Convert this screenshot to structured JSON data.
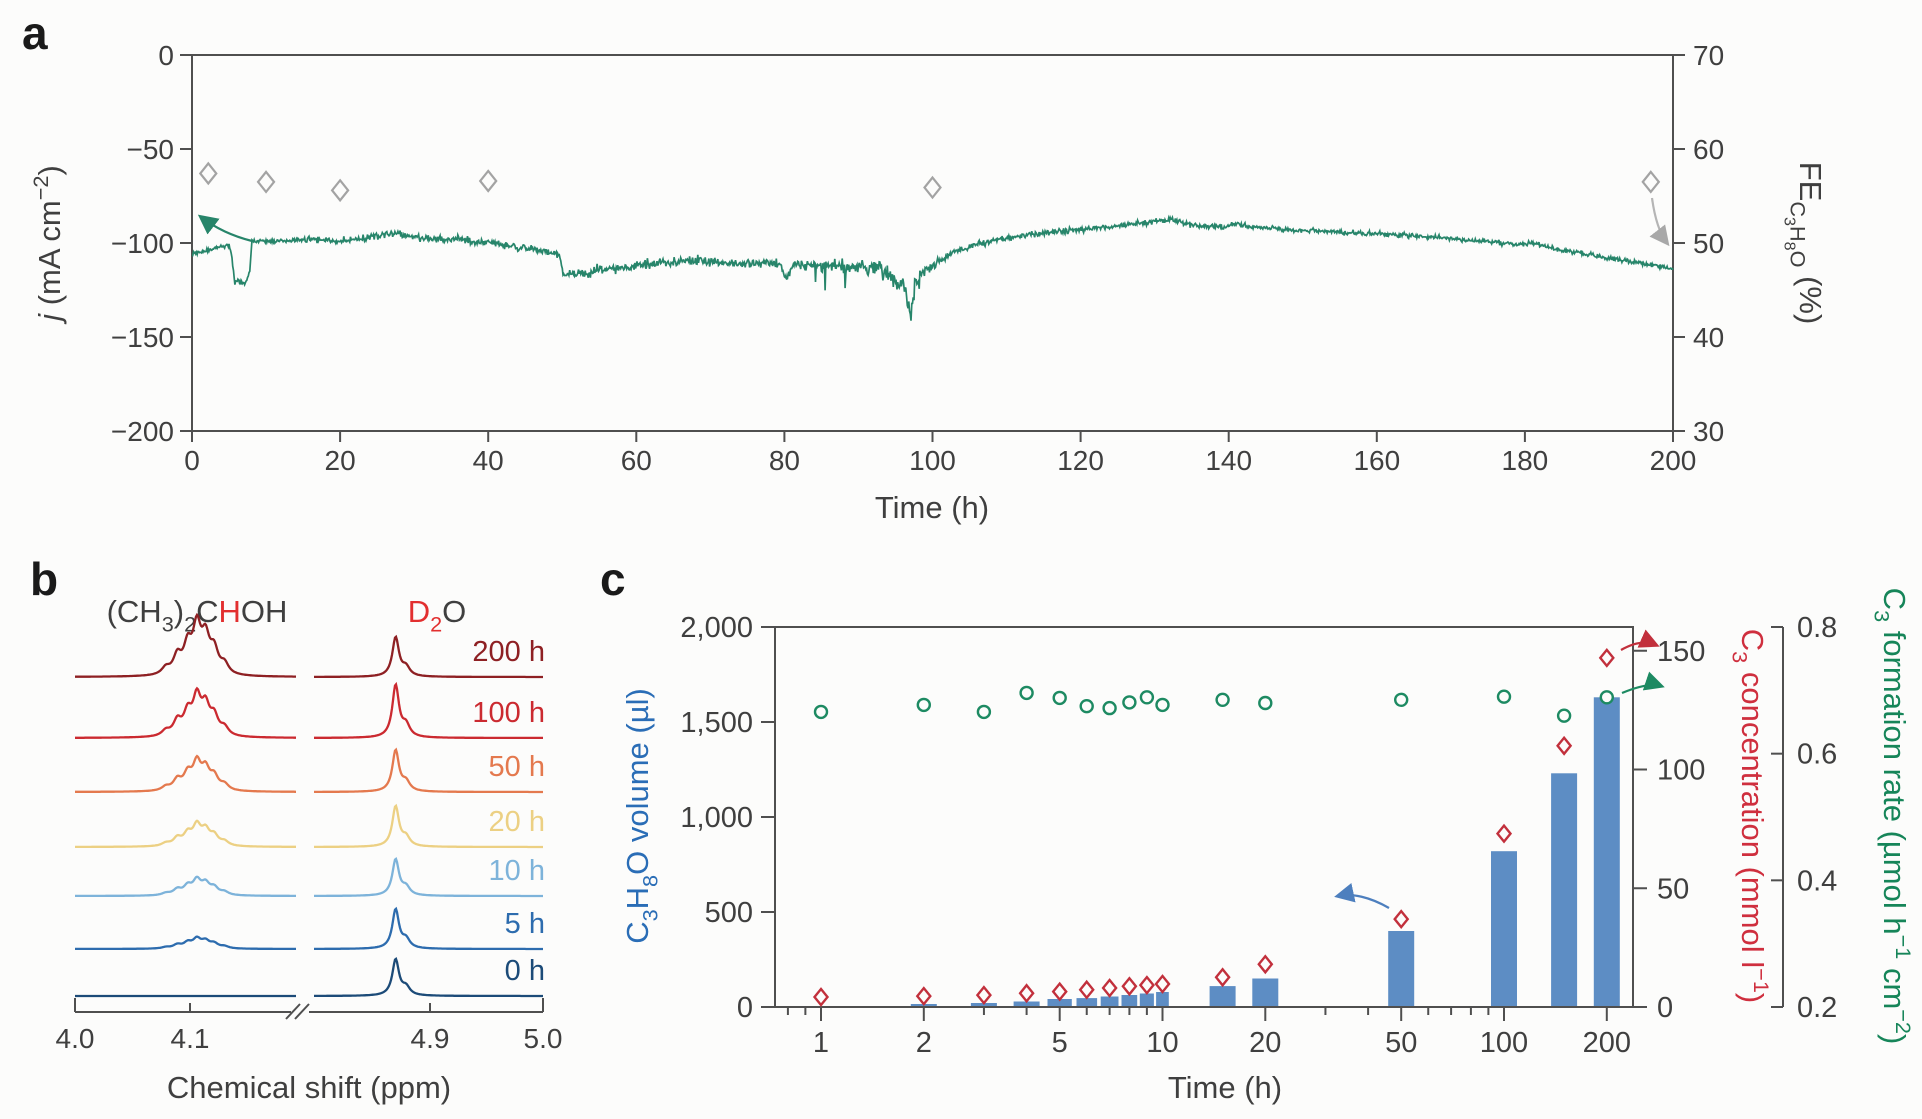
{
  "figure": {
    "background": "#fcfcfb",
    "text_color": "#3f3f3f",
    "axis_color": "#4f4f4f"
  },
  "chart_data": [
    {
      "id": "a",
      "panel_label": "a",
      "type": "line",
      "xlabel": "Time (h)",
      "ylabel_left": "j (mA cm−2)",
      "ylabel_right": "FE_C3H8O (%)",
      "ylabel_left_segments": [
        {
          "t": "j",
          "style": "italic"
        },
        {
          "t": " (mA cm"
        },
        {
          "t": "−2",
          "sup": 1
        },
        {
          "t": ")"
        }
      ],
      "ylabel_right_segments": [
        {
          "t": "FE"
        },
        {
          "t": "C",
          "sub": 1
        },
        {
          "t": "3",
          "sub": 2
        },
        {
          "t": "H",
          "sub": 1
        },
        {
          "t": "8",
          "sub": 2
        },
        {
          "t": "O",
          "sub": 1
        },
        {
          "t": " (%)"
        }
      ],
      "xlim": [
        0,
        200
      ],
      "ylim_left": [
        -200,
        0
      ],
      "ylim_right": [
        30,
        70
      ],
      "x_ticks": [
        {
          "v": 0,
          "label": "0"
        },
        {
          "v": 20,
          "label": "20"
        },
        {
          "v": 40,
          "label": "40"
        },
        {
          "v": 60,
          "label": "60"
        },
        {
          "v": 80,
          "label": "80"
        },
        {
          "v": 100,
          "label": "100"
        },
        {
          "v": 120,
          "label": "120"
        },
        {
          "v": 140,
          "label": "140"
        },
        {
          "v": 160,
          "label": "160"
        },
        {
          "v": 180,
          "label": "180"
        },
        {
          "v": 200,
          "label": "200"
        }
      ],
      "y_left_ticks": [
        {
          "v": 0,
          "label": "0"
        },
        {
          "v": -50,
          "label": "−50"
        },
        {
          "v": -100,
          "label": "−100"
        },
        {
          "v": -150,
          "label": "−150"
        },
        {
          "v": -200,
          "label": "−200"
        }
      ],
      "y_right_ticks": [
        {
          "v": 70,
          "label": "70"
        },
        {
          "v": 60,
          "label": "60"
        },
        {
          "v": 50,
          "label": "50"
        },
        {
          "v": 40,
          "label": "40"
        },
        {
          "v": 30,
          "label": "30"
        }
      ],
      "grid": false,
      "series": [
        {
          "name": "current density j",
          "axis": "left",
          "color": "#27856a",
          "anchors": [
            [
              0,
              -106,
              1.5
            ],
            [
              2,
              -104,
              1.5
            ],
            [
              4,
              -102,
              1.5
            ],
            [
              5,
              -101,
              1.5
            ],
            [
              5.4,
              -108,
              2
            ],
            [
              5.8,
              -122,
              3
            ],
            [
              6.5,
              -120,
              4
            ],
            [
              7.2,
              -122,
              3
            ],
            [
              7.8,
              -115,
              3
            ],
            [
              8.1,
              -99,
              1.5
            ],
            [
              10,
              -99,
              2
            ],
            [
              13,
              -99,
              2
            ],
            [
              16,
              -98,
              2.5
            ],
            [
              20,
              -99,
              2.5
            ],
            [
              24,
              -97,
              3
            ],
            [
              27,
              -95,
              3.5
            ],
            [
              29,
              -96,
              3
            ],
            [
              32,
              -98,
              3
            ],
            [
              36,
              -98,
              3
            ],
            [
              40,
              -100,
              3
            ],
            [
              44,
              -102,
              3
            ],
            [
              47,
              -104,
              2.5
            ],
            [
              49.5,
              -106,
              2.5
            ],
            [
              50.2,
              -117,
              3
            ],
            [
              53,
              -116,
              4
            ],
            [
              56,
              -114,
              4
            ],
            [
              59,
              -113,
              4
            ],
            [
              62,
              -111,
              4
            ],
            [
              65,
              -110,
              4
            ],
            [
              68,
              -109,
              4
            ],
            [
              71,
              -110,
              4
            ],
            [
              74,
              -111,
              4
            ],
            [
              77,
              -110,
              4
            ],
            [
              79.5,
              -112,
              4
            ],
            [
              80.3,
              -120,
              4
            ],
            [
              81,
              -112,
              4
            ],
            [
              84,
              -112,
              5
            ],
            [
              87,
              -113,
              5
            ],
            [
              90,
              -113,
              6
            ],
            [
              92,
              -112,
              6
            ],
            [
              94,
              -117,
              8
            ],
            [
              95.5,
              -121,
              9
            ],
            [
              96.6,
              -128,
              10
            ],
            [
              97.1,
              -138,
              10
            ],
            [
              97.4,
              -128,
              9
            ],
            [
              98,
              -120,
              7
            ],
            [
              99,
              -115,
              5
            ],
            [
              100,
              -112,
              4
            ],
            [
              101.5,
              -108,
              3
            ],
            [
              103,
              -105,
              3
            ],
            [
              105,
              -102,
              2.5
            ],
            [
              108,
              -99,
              2.5
            ],
            [
              111,
              -97,
              2.5
            ],
            [
              114,
              -95,
              2.5
            ],
            [
              118,
              -93.5,
              2.5
            ],
            [
              122,
              -92,
              2.5
            ],
            [
              126,
              -90.5,
              2.5
            ],
            [
              129,
              -89,
              2.5
            ],
            [
              132,
              -87.5,
              2.5
            ],
            [
              134,
              -89.5,
              2
            ],
            [
              136,
              -91,
              2
            ],
            [
              139,
              -91.5,
              2
            ],
            [
              141.5,
              -89.5,
              2.5
            ],
            [
              144,
              -92,
              2
            ],
            [
              148,
              -93,
              2
            ],
            [
              152,
              -93.5,
              2
            ],
            [
              156,
              -94.5,
              2
            ],
            [
              160,
              -95,
              2
            ],
            [
              164,
              -96,
              2
            ],
            [
              168,
              -97,
              2
            ],
            [
              172,
              -98.5,
              2
            ],
            [
              176,
              -99.5,
              2
            ],
            [
              179,
              -101,
              2
            ],
            [
              181.5,
              -100,
              2
            ],
            [
              184,
              -103,
              2
            ],
            [
              187,
              -105,
              2
            ],
            [
              190,
              -107,
              2.2
            ],
            [
              193,
              -109,
              2
            ],
            [
              196,
              -111,
              1.8
            ],
            [
              198,
              -112.5,
              1.5
            ],
            [
              200,
              -114,
              1.5
            ]
          ]
        },
        {
          "name": "FE C3H8O",
          "axis": "right",
          "marker": "diamond",
          "color": "#a3a3a3",
          "points": [
            [
              2.2,
              57.4
            ],
            [
              10,
              56.5
            ],
            [
              20,
              55.6
            ],
            [
              40,
              56.6
            ],
            [
              100,
              55.9
            ],
            [
              197,
              56.5
            ]
          ]
        }
      ]
    },
    {
      "id": "b",
      "panel_label": "b",
      "type": "line",
      "subtype": "NMR spectra, stacked",
      "xlabel": "Chemical shift (ppm)",
      "axis_break": true,
      "x_ticks_left": [
        {
          "ppm": 4.0,
          "label": "4.0"
        },
        {
          "ppm": 4.1,
          "label": "4.1"
        }
      ],
      "x_ticks_right": [
        {
          "ppm": 4.9,
          "label": "4.9"
        },
        {
          "ppm": 5.0,
          "label": "5.0"
        }
      ],
      "annotation_isopropanol": [
        {
          "t": "(CH"
        },
        {
          "t": "3",
          "sub": 1
        },
        {
          "t": ")"
        },
        {
          "t": "2",
          "sub": 1
        },
        {
          "t": "C"
        },
        {
          "t": "H",
          "color": "#e22f2f"
        },
        {
          "t": "OH"
        }
      ],
      "annotation_d2o": [
        {
          "t": "D",
          "color": "#e22f2f"
        },
        {
          "t": "2",
          "sub": 1,
          "color": "#e22f2f"
        },
        {
          "t": "O"
        }
      ],
      "multiplet_peaks_ppm": [
        [
          4.079,
          0.15
        ],
        [
          4.089,
          0.4
        ],
        [
          4.098,
          0.6
        ],
        [
          4.106,
          1.0
        ],
        [
          4.1135,
          0.75
        ],
        [
          4.121,
          0.5
        ],
        [
          4.13,
          0.22
        ]
      ],
      "d2o_peak_ppm": 4.869,
      "traces": [
        {
          "label": "200 h",
          "color": "#8e2023",
          "multiplet_height": 45,
          "d2o_height": 39
        },
        {
          "label": "100 h",
          "color": "#cb2a30",
          "multiplet_height": 36,
          "d2o_height": 52
        },
        {
          "label": "50 h",
          "color": "#e4794e",
          "multiplet_height": 26,
          "d2o_height": 41
        },
        {
          "label": "20 h",
          "color": "#ecd083",
          "multiplet_height": 19,
          "d2o_height": 40
        },
        {
          "label": "10 h",
          "color": "#7db3da",
          "multiplet_height": 14,
          "d2o_height": 36
        },
        {
          "label": "5 h",
          "color": "#2d6cae",
          "multiplet_height": 9,
          "d2o_height": 39
        },
        {
          "label": "0 h",
          "color": "#1c4b78",
          "multiplet_height": 0,
          "d2o_height": 36
        }
      ]
    },
    {
      "id": "c",
      "panel_label": "c",
      "type": "bar",
      "subtype": "bar + two open-marker scatter series, log x axis",
      "xlabel": "Time (h)",
      "x_scale": "log",
      "x_ticks": [
        {
          "v": 1,
          "label": "1"
        },
        {
          "v": 2,
          "label": "2"
        },
        {
          "v": 5,
          "label": "5"
        },
        {
          "v": 10,
          "label": "10"
        },
        {
          "v": 20,
          "label": "20"
        },
        {
          "v": 50,
          "label": "50"
        },
        {
          "v": 100,
          "label": "100"
        },
        {
          "v": 200,
          "label": "200"
        }
      ],
      "x_minor_ticks": [
        0.8,
        0.9,
        3,
        4,
        6,
        7,
        8,
        9,
        30,
        40,
        60,
        70,
        80,
        90
      ],
      "ylabel_left": "C3H8O volume (µl)",
      "ylabel_left_segments": [
        {
          "t": "C"
        },
        {
          "t": "3",
          "sub": 1
        },
        {
          "t": "H"
        },
        {
          "t": "8",
          "sub": 1
        },
        {
          "t": "O volume (µl)"
        }
      ],
      "ylim_left": [
        0,
        2000
      ],
      "y_left_ticks": [
        {
          "v": 2000,
          "label": "2,000"
        },
        {
          "v": 1500,
          "label": "1,500"
        },
        {
          "v": 1000,
          "label": "1,000"
        },
        {
          "v": 500,
          "label": "500"
        },
        {
          "v": 0,
          "label": "0"
        }
      ],
      "ylabel_right1": "C3 concentration (mmol l−1)",
      "ylabel_right1_segments": [
        {
          "t": "C"
        },
        {
          "t": "3",
          "sub": 1
        },
        {
          "t": " concentration (mmol l"
        },
        {
          "t": "−1",
          "sup": 1
        },
        {
          "t": ")"
        }
      ],
      "ylim_right1": [
        0,
        160
      ],
      "y_right1_ticks": [
        {
          "v": 150,
          "label": "150"
        },
        {
          "v": 100,
          "label": "100"
        },
        {
          "v": 50,
          "label": "50"
        },
        {
          "v": 0,
          "label": "0"
        }
      ],
      "ylabel_right2": "C3 formation rate (µmol h−1 cm−2)",
      "ylabel_right2_segments": [
        {
          "t": "C"
        },
        {
          "t": "3",
          "sub": 1
        },
        {
          "t": " formation rate (µmol h"
        },
        {
          "t": "−1",
          "sup": 1
        },
        {
          "t": " cm"
        },
        {
          "t": "−2",
          "sup": 1
        },
        {
          "t": ")"
        }
      ],
      "ylim_right2": [
        0.2,
        0.8
      ],
      "y_right2_ticks": [
        {
          "v": 0.8,
          "label": "0.8"
        },
        {
          "v": 0.6,
          "label": "0.6"
        },
        {
          "v": 0.4,
          "label": "0.4"
        },
        {
          "v": 0.2,
          "label": "0.2"
        }
      ],
      "categories": [
        1,
        2,
        3,
        4,
        5,
        6,
        7,
        8,
        9,
        10,
        15,
        20,
        50,
        100,
        150,
        200
      ],
      "series": [
        {
          "name": "C3H8O volume (µl)",
          "style": "bar",
          "color": "#5d8dc4",
          "values": [
            3,
            16,
            21,
            29,
            42,
            47,
            55,
            63,
            71,
            79,
            110,
            150,
            400,
            820,
            1230,
            1630
          ]
        },
        {
          "name": "C3 concentration (mmol l−1)",
          "style": "open-diamond",
          "color": "#c2303c",
          "values": [
            4.2,
            4.6,
            5,
            5.8,
            6.5,
            7.3,
            8,
            8.7,
            9.2,
            9.7,
            12.5,
            18,
            37,
            73,
            110,
            147
          ]
        },
        {
          "name": "C3 formation rate (µmol h−1 cm−2)",
          "style": "open-circle",
          "color": "#1d8a62",
          "values": [
            0.666,
            0.677,
            0.666,
            0.696,
            0.688,
            0.675,
            0.672,
            0.681,
            0.689,
            0.677,
            0.685,
            0.68,
            0.685,
            0.69,
            0.66,
            0.689
          ]
        }
      ]
    }
  ]
}
